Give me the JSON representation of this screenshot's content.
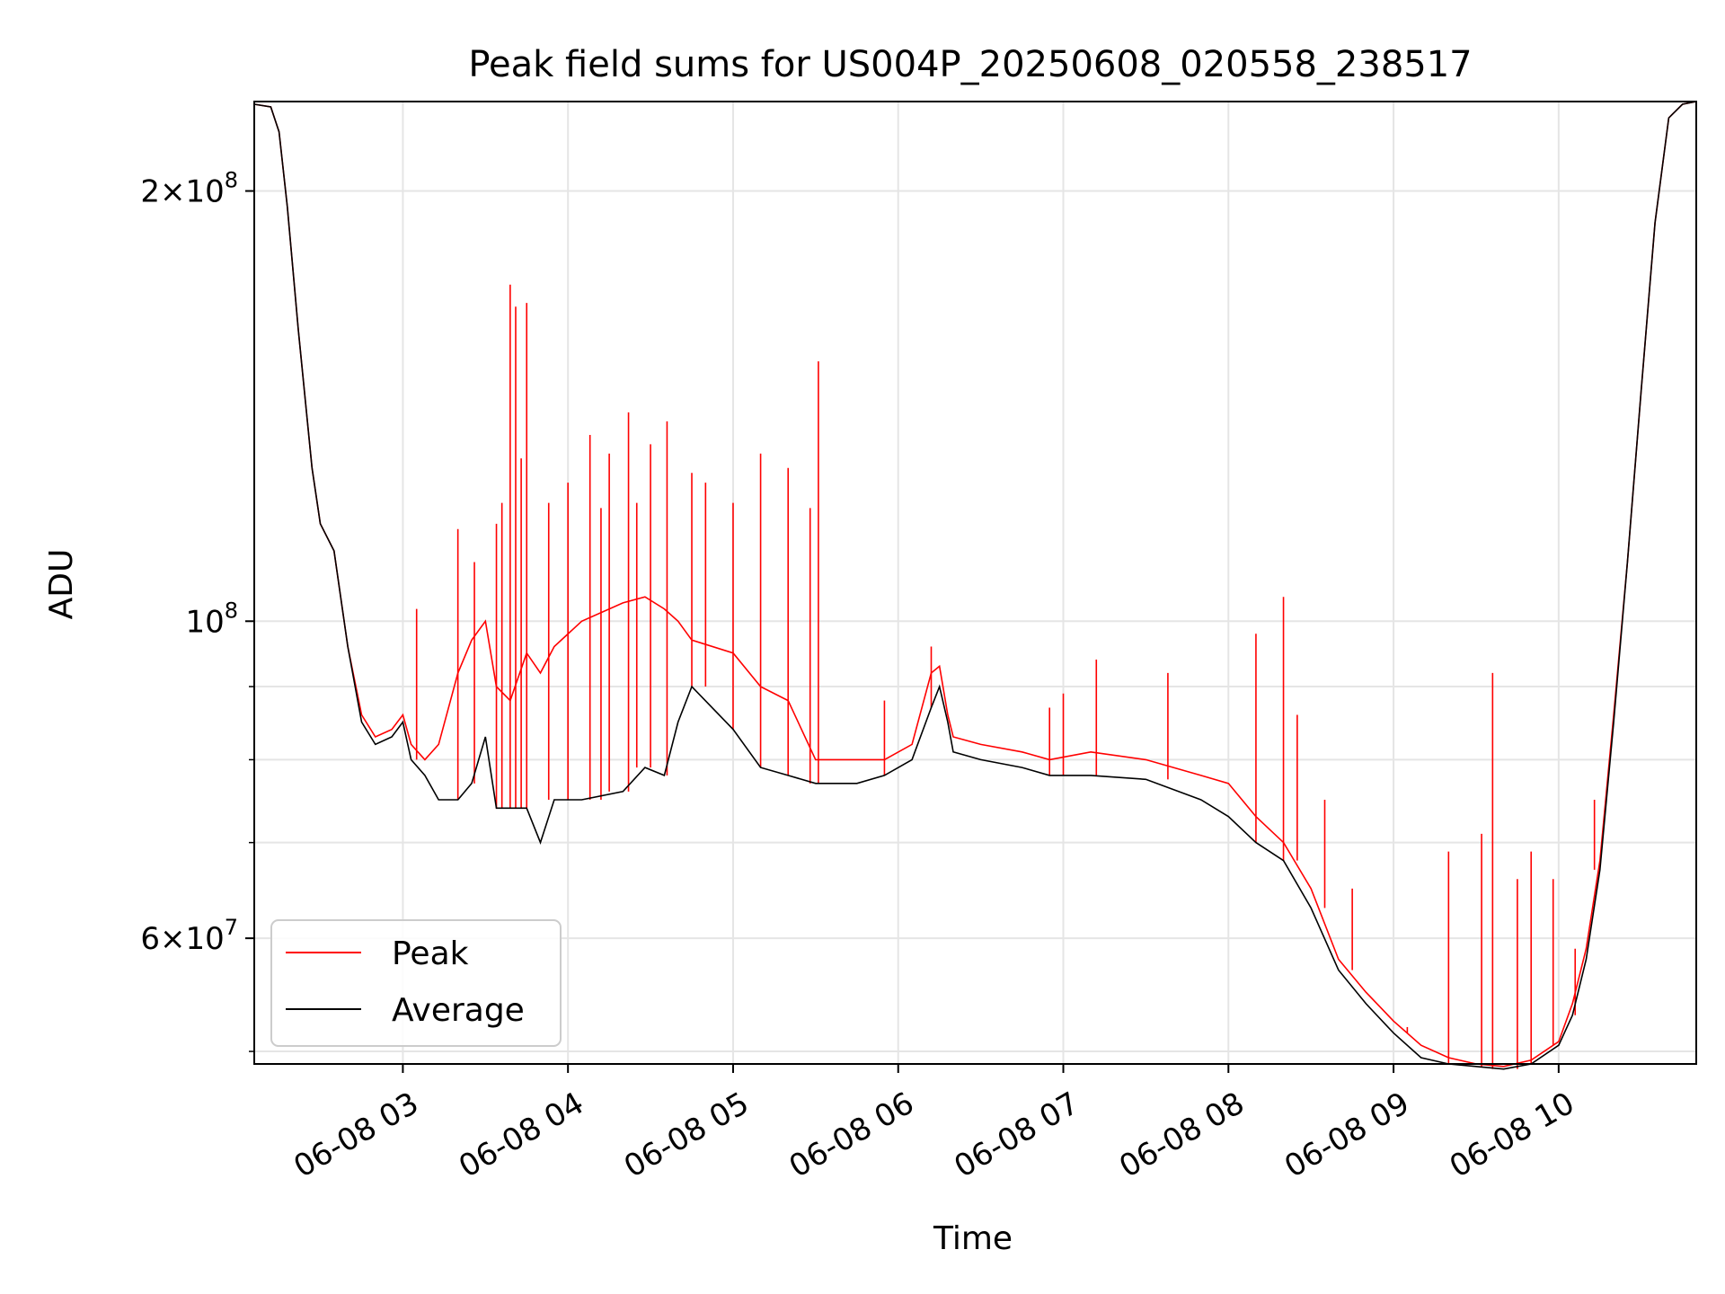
{
  "chart_data": {
    "type": "line",
    "title": "Peak field sums for US004P_20250608_020558_238517",
    "xlabel": "Time",
    "ylabel": "ADU",
    "y_scale": "log",
    "xlim": [
      "06-08 02:06",
      "06-08 10:50"
    ],
    "ylim": [
      49000000,
      231000000
    ],
    "x_ticks": [
      "06-08 03",
      "06-08 04",
      "06-08 05",
      "06-08 06",
      "06-08 07",
      "06-08 08",
      "06-08 09",
      "06-08 10"
    ],
    "y_ticks": [
      {
        "value": 200000000,
        "mantissa": "2",
        "base": "×10",
        "exp": "8"
      },
      {
        "value": 100000000,
        "mantissa": "",
        "base": "10",
        "exp": "8"
      },
      {
        "value": 60000000,
        "mantissa": "6",
        "base": "×10",
        "exp": "7"
      }
    ],
    "y_minor_ticks": [
      50000000,
      70000000,
      80000000,
      90000000
    ],
    "grid": true,
    "legend_position": "lower-left",
    "legend": [
      "Peak",
      "Average"
    ],
    "series_colors": {
      "Peak": "#ff0000",
      "Average": "#000000"
    },
    "series": [
      {
        "name": "Average",
        "x": [
          "06-08 02:06",
          "06-08 02:12",
          "06-08 02:15",
          "06-08 02:18",
          "06-08 02:22",
          "06-08 02:27",
          "06-08 02:30",
          "06-08 02:35",
          "06-08 02:40",
          "06-08 02:45",
          "06-08 02:50",
          "06-08 02:56",
          "06-08 03:00",
          "06-08 03:03",
          "06-08 03:08",
          "06-08 03:13",
          "06-08 03:20",
          "06-08 03:25",
          "06-08 03:30",
          "06-08 03:34",
          "06-08 03:39",
          "06-08 03:45",
          "06-08 03:50",
          "06-08 03:55",
          "06-08 04:05",
          "06-08 04:20",
          "06-08 04:28",
          "06-08 04:35",
          "06-08 04:40",
          "06-08 04:45",
          "06-08 05:00",
          "06-08 05:10",
          "06-08 05:20",
          "06-08 05:30",
          "06-08 05:45",
          "06-08 05:55",
          "06-08 06:05",
          "06-08 06:12",
          "06-08 06:15",
          "06-08 06:18",
          "06-08 06:20",
          "06-08 06:30",
          "06-08 06:45",
          "06-08 06:55",
          "06-08 07:10",
          "06-08 07:30",
          "06-08 07:50",
          "06-08 08:00",
          "06-08 08:10",
          "06-08 08:20",
          "06-08 08:30",
          "06-08 08:40",
          "06-08 08:50",
          "06-08 09:00",
          "06-08 09:10",
          "06-08 09:20",
          "06-08 09:30",
          "06-08 09:40",
          "06-08 09:50",
          "06-08 10:00",
          "06-08 10:05",
          "06-08 10:10",
          "06-08 10:15",
          "06-08 10:20",
          "06-08 10:25",
          "06-08 10:30",
          "06-08 10:35",
          "06-08 10:40",
          "06-08 10:45",
          "06-08 10:50"
        ],
        "values": [
          230000000,
          229000000,
          220000000,
          195000000,
          160000000,
          128000000,
          117000000,
          112000000,
          96000000,
          85000000,
          82000000,
          83000000,
          85000000,
          80000000,
          78000000,
          75000000,
          75000000,
          77000000,
          83000000,
          74000000,
          74000000,
          74000000,
          70000000,
          75000000,
          75000000,
          76000000,
          79000000,
          78000000,
          85000000,
          90000000,
          84000000,
          79000000,
          78000000,
          77000000,
          77000000,
          78000000,
          80000000,
          87000000,
          90000000,
          85000000,
          81000000,
          80000000,
          79000000,
          78000000,
          78000000,
          77500000,
          75000000,
          73000000,
          70000000,
          68000000,
          63000000,
          57000000,
          54000000,
          51500000,
          49500000,
          49000000,
          48800000,
          48600000,
          49000000,
          50500000,
          53000000,
          58000000,
          67000000,
          85000000,
          110000000,
          145000000,
          190000000,
          225000000,
          230000000,
          231000000
        ]
      },
      {
        "name": "Peak",
        "x": [
          "06-08 02:06",
          "06-08 02:12",
          "06-08 02:15",
          "06-08 02:18",
          "06-08 02:22",
          "06-08 02:27",
          "06-08 02:30",
          "06-08 02:35",
          "06-08 02:40",
          "06-08 02:45",
          "06-08 02:50",
          "06-08 02:56",
          "06-08 03:00",
          "06-08 03:03",
          "06-08 03:08",
          "06-08 03:13",
          "06-08 03:20",
          "06-08 03:25",
          "06-08 03:30",
          "06-08 03:34",
          "06-08 03:39",
          "06-08 03:45",
          "06-08 03:50",
          "06-08 03:55",
          "06-08 04:05",
          "06-08 04:20",
          "06-08 04:28",
          "06-08 04:35",
          "06-08 04:40",
          "06-08 04:45",
          "06-08 05:00",
          "06-08 05:10",
          "06-08 05:20",
          "06-08 05:30",
          "06-08 05:45",
          "06-08 05:55",
          "06-08 06:05",
          "06-08 06:12",
          "06-08 06:15",
          "06-08 06:18",
          "06-08 06:20",
          "06-08 06:30",
          "06-08 06:45",
          "06-08 06:55",
          "06-08 07:10",
          "06-08 07:30",
          "06-08 07:50",
          "06-08 08:00",
          "06-08 08:10",
          "06-08 08:20",
          "06-08 08:30",
          "06-08 08:40",
          "06-08 08:50",
          "06-08 09:00",
          "06-08 09:10",
          "06-08 09:20",
          "06-08 09:30",
          "06-08 09:40",
          "06-08 09:50",
          "06-08 10:00",
          "06-08 10:05",
          "06-08 10:10",
          "06-08 10:15",
          "06-08 10:20",
          "06-08 10:25",
          "06-08 10:30",
          "06-08 10:35",
          "06-08 10:40",
          "06-08 10:45",
          "06-08 10:50"
        ],
        "values": [
          230000000,
          229000000,
          220000000,
          195000000,
          160000000,
          128000000,
          117000000,
          112000000,
          96000000,
          86000000,
          83000000,
          84000000,
          86000000,
          82000000,
          80000000,
          82000000,
          92000000,
          97000000,
          100000000,
          90000000,
          88000000,
          95000000,
          92000000,
          96000000,
          100000000,
          103000000,
          104000000,
          102000000,
          100000000,
          97000000,
          95000000,
          90000000,
          88000000,
          80000000,
          80000000,
          80000000,
          82000000,
          92000000,
          93000000,
          86000000,
          83000000,
          82000000,
          81000000,
          80000000,
          81000000,
          80000000,
          78000000,
          77000000,
          73000000,
          70000000,
          65000000,
          58000000,
          55000000,
          52500000,
          50500000,
          49500000,
          49000000,
          48800000,
          49300000,
          50800000,
          54000000,
          59000000,
          68000000,
          86000000,
          110000000,
          145000000,
          190000000,
          225000000,
          230000000,
          231000000
        ],
        "spikes": [
          {
            "x": "06-08 03:05",
            "value": 102000000
          },
          {
            "x": "06-08 03:20",
            "value": 116000000
          },
          {
            "x": "06-08 03:26",
            "value": 110000000
          },
          {
            "x": "06-08 03:34",
            "value": 117000000
          },
          {
            "x": "06-08 03:36",
            "value": 121000000
          },
          {
            "x": "06-08 03:39",
            "value": 172000000
          },
          {
            "x": "06-08 03:41",
            "value": 166000000
          },
          {
            "x": "06-08 03:43",
            "value": 130000000
          },
          {
            "x": "06-08 03:45",
            "value": 167000000
          },
          {
            "x": "06-08 03:53",
            "value": 121000000
          },
          {
            "x": "06-08 04:00",
            "value": 125000000
          },
          {
            "x": "06-08 04:08",
            "value": 135000000
          },
          {
            "x": "06-08 04:12",
            "value": 120000000
          },
          {
            "x": "06-08 04:15",
            "value": 131000000
          },
          {
            "x": "06-08 04:22",
            "value": 140000000
          },
          {
            "x": "06-08 04:25",
            "value": 121000000
          },
          {
            "x": "06-08 04:30",
            "value": 133000000
          },
          {
            "x": "06-08 04:36",
            "value": 138000000
          },
          {
            "x": "06-08 04:45",
            "value": 127000000
          },
          {
            "x": "06-08 04:50",
            "value": 125000000
          },
          {
            "x": "06-08 05:00",
            "value": 121000000
          },
          {
            "x": "06-08 05:10",
            "value": 131000000
          },
          {
            "x": "06-08 05:20",
            "value": 128000000
          },
          {
            "x": "06-08 05:28",
            "value": 120000000
          },
          {
            "x": "06-08 05:31",
            "value": 152000000
          },
          {
            "x": "06-08 05:55",
            "value": 88000000
          },
          {
            "x": "06-08 06:12",
            "value": 96000000
          },
          {
            "x": "06-08 06:55",
            "value": 87000000
          },
          {
            "x": "06-08 07:00",
            "value": 89000000
          },
          {
            "x": "06-08 07:12",
            "value": 94000000
          },
          {
            "x": "06-08 07:38",
            "value": 92000000
          },
          {
            "x": "06-08 08:10",
            "value": 98000000
          },
          {
            "x": "06-08 08:20",
            "value": 104000000
          },
          {
            "x": "06-08 08:25",
            "value": 86000000
          },
          {
            "x": "06-08 08:35",
            "value": 75000000
          },
          {
            "x": "06-08 08:45",
            "value": 65000000
          },
          {
            "x": "06-08 09:05",
            "value": 52000000
          },
          {
            "x": "06-08 09:20",
            "value": 69000000
          },
          {
            "x": "06-08 09:32",
            "value": 71000000
          },
          {
            "x": "06-08 09:36",
            "value": 92000000
          },
          {
            "x": "06-08 09:45",
            "value": 66000000
          },
          {
            "x": "06-08 09:50",
            "value": 69000000
          },
          {
            "x": "06-08 09:58",
            "value": 66000000
          },
          {
            "x": "06-08 10:06",
            "value": 59000000
          },
          {
            "x": "06-08 10:13",
            "value": 75000000
          }
        ]
      }
    ]
  }
}
